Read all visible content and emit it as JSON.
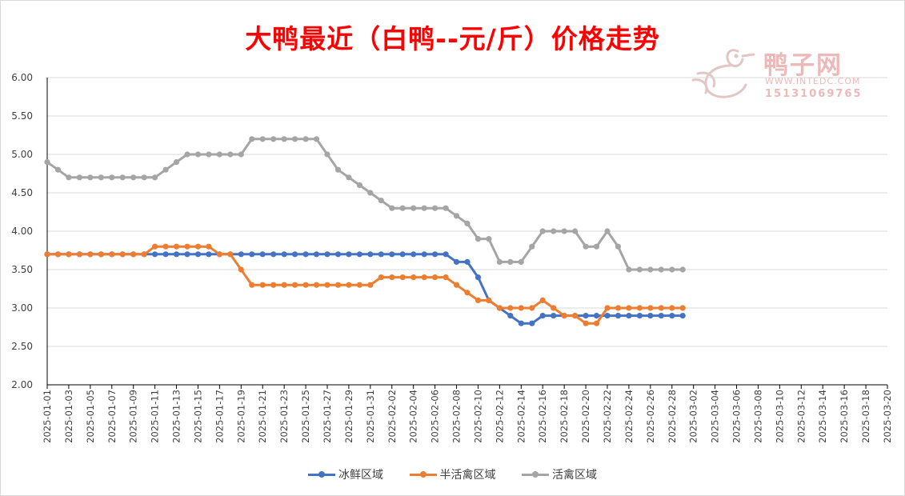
{
  "title": "大鸭最近（白鸭--元/斤）价格走势",
  "watermark": {
    "name": "鸭子网",
    "url": "WWW.INTEDC.COM",
    "phone": "15131069765",
    "icon": "duck-logo-icon"
  },
  "colors": {
    "title": "#ff0000",
    "series": [
      "#4472c4",
      "#ed7d31",
      "#a5a5a5"
    ],
    "grid": "#d9d9d9",
    "axis_text": "#404040"
  },
  "chart_data": {
    "type": "line",
    "title": "大鸭最近（白鸭--元/斤）价格走势",
    "grid": true,
    "legend_position": "bottom",
    "ylim": [
      2.0,
      6.0
    ],
    "yticks": [
      "2.00",
      "2.50",
      "3.00",
      "3.50",
      "4.00",
      "4.50",
      "5.00",
      "5.50",
      "6.00"
    ],
    "xlim": [
      "2025-01-01",
      "2025-03-20"
    ],
    "xticks": [
      "2025-01-01",
      "2025-01-03",
      "2025-01-05",
      "2025-01-07",
      "2025-01-09",
      "2025-01-11",
      "2025-01-13",
      "2025-01-15",
      "2025-01-17",
      "2025-01-19",
      "2025-01-21",
      "2025-01-23",
      "2025-01-25",
      "2025-01-27",
      "2025-01-29",
      "2025-01-31",
      "2025-02-02",
      "2025-02-04",
      "2025-02-06",
      "2025-02-08",
      "2025-02-10",
      "2025-02-12",
      "2025-02-14",
      "2025-02-16",
      "2025-02-18",
      "2025-02-20",
      "2025-02-22",
      "2025-02-24",
      "2025-02-26",
      "2025-02-28",
      "2025-03-02",
      "2025-03-04",
      "2025-03-06",
      "2025-03-08",
      "2025-03-10",
      "2025-03-12",
      "2025-03-14",
      "2025-03-16",
      "2025-03-18",
      "2025-03-20"
    ],
    "dates": [
      "2025-01-01",
      "2025-01-02",
      "2025-01-03",
      "2025-01-04",
      "2025-01-05",
      "2025-01-06",
      "2025-01-07",
      "2025-01-08",
      "2025-01-09",
      "2025-01-10",
      "2025-01-11",
      "2025-01-12",
      "2025-01-13",
      "2025-01-14",
      "2025-01-15",
      "2025-01-16",
      "2025-01-17",
      "2025-01-18",
      "2025-01-19",
      "2025-01-20",
      "2025-01-21",
      "2025-01-22",
      "2025-01-23",
      "2025-01-24",
      "2025-01-25",
      "2025-01-26",
      "2025-01-27",
      "2025-01-28",
      "2025-01-29",
      "2025-01-30",
      "2025-01-31",
      "2025-02-01",
      "2025-02-02",
      "2025-02-03",
      "2025-02-04",
      "2025-02-05",
      "2025-02-06",
      "2025-02-07",
      "2025-02-08",
      "2025-02-09",
      "2025-02-10",
      "2025-02-11",
      "2025-02-12",
      "2025-02-13",
      "2025-02-14",
      "2025-02-15",
      "2025-02-16",
      "2025-02-17",
      "2025-02-18",
      "2025-02-19",
      "2025-02-20",
      "2025-02-21",
      "2025-02-22",
      "2025-02-23",
      "2025-02-24",
      "2025-02-25",
      "2025-02-26",
      "2025-02-27",
      "2025-02-28",
      "2025-03-01"
    ],
    "series": [
      {
        "name": "冰鲜区域",
        "values": [
          3.7,
          3.7,
          3.7,
          3.7,
          3.7,
          3.7,
          3.7,
          3.7,
          3.7,
          3.7,
          3.7,
          3.7,
          3.7,
          3.7,
          3.7,
          3.7,
          3.7,
          3.7,
          3.7,
          3.7,
          3.7,
          3.7,
          3.7,
          3.7,
          3.7,
          3.7,
          3.7,
          3.7,
          3.7,
          3.7,
          3.7,
          3.7,
          3.7,
          3.7,
          3.7,
          3.7,
          3.7,
          3.7,
          3.6,
          3.6,
          3.4,
          3.1,
          3.0,
          2.9,
          2.8,
          2.8,
          2.9,
          2.9,
          2.9,
          2.9,
          2.9,
          2.9,
          2.9,
          2.9,
          2.9,
          2.9,
          2.9,
          2.9,
          2.9,
          2.9
        ]
      },
      {
        "name": "半活禽区域",
        "values": [
          3.7,
          3.7,
          3.7,
          3.7,
          3.7,
          3.7,
          3.7,
          3.7,
          3.7,
          3.7,
          3.8,
          3.8,
          3.8,
          3.8,
          3.8,
          3.8,
          3.7,
          3.7,
          3.5,
          3.3,
          3.3,
          3.3,
          3.3,
          3.3,
          3.3,
          3.3,
          3.3,
          3.3,
          3.3,
          3.3,
          3.3,
          3.4,
          3.4,
          3.4,
          3.4,
          3.4,
          3.4,
          3.4,
          3.3,
          3.2,
          3.1,
          3.1,
          3.0,
          3.0,
          3.0,
          3.0,
          3.1,
          3.0,
          2.9,
          2.9,
          2.8,
          2.8,
          3.0,
          3.0,
          3.0,
          3.0,
          3.0,
          3.0,
          3.0,
          3.0
        ]
      },
      {
        "name": "活禽区域",
        "values": [
          4.9,
          4.8,
          4.7,
          4.7,
          4.7,
          4.7,
          4.7,
          4.7,
          4.7,
          4.7,
          4.7,
          4.8,
          4.9,
          5.0,
          5.0,
          5.0,
          5.0,
          5.0,
          5.0,
          5.2,
          5.2,
          5.2,
          5.2,
          5.2,
          5.2,
          5.2,
          5.0,
          4.8,
          4.7,
          4.6,
          4.5,
          4.4,
          4.3,
          4.3,
          4.3,
          4.3,
          4.3,
          4.3,
          4.2,
          4.1,
          3.9,
          3.9,
          3.6,
          3.6,
          3.6,
          3.8,
          4.0,
          4.0,
          4.0,
          4.0,
          3.8,
          3.8,
          4.0,
          3.8,
          3.5,
          3.5,
          3.5,
          3.5,
          3.5,
          3.5
        ]
      }
    ]
  }
}
